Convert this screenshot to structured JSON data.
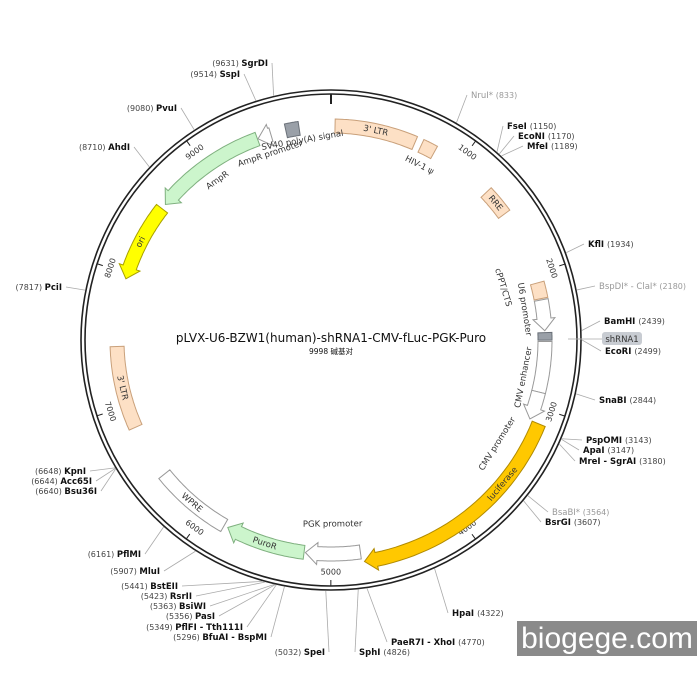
{
  "plasmid": {
    "name": "pLVX-U6-BZW1(human)-shRNA1-CMV-fLuc-PGK-Puro",
    "length_label": "9998 碱基对",
    "length_bp": 9998
  },
  "ticks": [
    "1000",
    "2000",
    "3000",
    "4000",
    "5000",
    "6000",
    "7000",
    "8000",
    "9000"
  ],
  "features": [
    {
      "label": "3' LTR",
      "start": 30,
      "end": 640,
      "dir": "none",
      "color": "#fde0c5"
    },
    {
      "label": "HIV-1 ψ",
      "start": 690,
      "end": 800,
      "dir": "none",
      "color": "#fde0c5"
    },
    {
      "label": "RRE",
      "start": 1290,
      "end": 1500,
      "dir": "none",
      "color": "#fde0c5"
    },
    {
      "label": "cPPT/CTS",
      "start": 2070,
      "end": 2190,
      "dir": "none",
      "color": "#fde0c5"
    },
    {
      "label": "U6 promoter",
      "start": 2200,
      "end": 2430,
      "dir": "cw",
      "color": "#ffffff"
    },
    {
      "label": "shRNA1",
      "start": 2445,
      "end": 2500,
      "dir": "none",
      "color": "#9aa0a8"
    },
    {
      "label": "CMV enhancer",
      "start": 2510,
      "end": 2890,
      "dir": "none",
      "color": "#ffffff"
    },
    {
      "label": "CMV promoter",
      "start": 2890,
      "end": 3100,
      "dir": "cw",
      "color": "#ffffff"
    },
    {
      "label": "luciferase",
      "start": 3110,
      "end": 4760,
      "dir": "cw",
      "color": "#ffc800"
    },
    {
      "label": "PGK promoter",
      "start": 4780,
      "end": 5190,
      "dir": "cw",
      "color": "#ffffff"
    },
    {
      "label": "PuroR",
      "start": 5200,
      "end": 5800,
      "dir": "cw",
      "color": "#ccf5cc"
    },
    {
      "label": "WPRE",
      "start": 5830,
      "end": 6420,
      "dir": "none",
      "color": "#ffffff"
    },
    {
      "label": "3' LTR",
      "start": 6830,
      "end": 7450,
      "dir": "none",
      "color": "#fde0c5"
    },
    {
      "label": "ori",
      "start": 7960,
      "end": 8550,
      "dir": "ccw",
      "color": "#ffff00"
    },
    {
      "label": "AmpR",
      "start": 8590,
      "end": 9440,
      "dir": "ccw",
      "color": "#ccf5cc"
    },
    {
      "label": "AmpR promoter",
      "start": 9445,
      "end": 9545,
      "dir": "ccw",
      "color": "#ffffff"
    },
    {
      "label": "SV40 poly(A) signal",
      "start": 9660,
      "end": 9760,
      "dir": "none",
      "color": "#9aa0a8"
    }
  ],
  "sites": [
    {
      "name": "SgrDI",
      "pos": "(9631)",
      "bp": 9631,
      "gray": false
    },
    {
      "name": "SspI",
      "pos": "(9514)",
      "bp": 9514,
      "gray": false
    },
    {
      "name": "PvuI",
      "pos": "(9080)",
      "bp": 9080,
      "gray": false
    },
    {
      "name": "AhdI",
      "pos": "(8710)",
      "bp": 8710,
      "gray": false
    },
    {
      "name": "PciI",
      "pos": "(7817)",
      "bp": 7817,
      "gray": false
    },
    {
      "name": "KpnI",
      "pos": "(6648)",
      "bp": 6648,
      "gray": false
    },
    {
      "name": "Acc65I",
      "pos": "(6644)",
      "bp": 6644,
      "gray": false
    },
    {
      "name": "Bsu36I",
      "pos": "(6640)",
      "bp": 6640,
      "gray": false
    },
    {
      "name": "PflMI",
      "pos": "(6161)",
      "bp": 6161,
      "gray": false
    },
    {
      "name": "MluI",
      "pos": "(5907)",
      "bp": 5907,
      "gray": false
    },
    {
      "name": "BstEII",
      "pos": "(5441)",
      "bp": 5441,
      "gray": false
    },
    {
      "name": "RsrII",
      "pos": "(5423)",
      "bp": 5423,
      "gray": false
    },
    {
      "name": "BsiWI",
      "pos": "(5363)",
      "bp": 5363,
      "gray": false
    },
    {
      "name": "PasI",
      "pos": "(5356)",
      "bp": 5356,
      "gray": false
    },
    {
      "name": "PflFI - Tth111I",
      "pos": "(5349)",
      "bp": 5349,
      "gray": false
    },
    {
      "name": "BfuAI - BspMI",
      "pos": "(5296)",
      "bp": 5296,
      "gray": false
    },
    {
      "name": "SpeI",
      "pos": "(5032)",
      "bp": 5032,
      "gray": false
    },
    {
      "name": "NruI*",
      "pos": "(833)",
      "bp": 833,
      "gray": true
    },
    {
      "name": "FseI",
      "pos": "(1150)",
      "bp": 1150,
      "gray": false
    },
    {
      "name": "EcoNI",
      "pos": "(1170)",
      "bp": 1170,
      "gray": false
    },
    {
      "name": "MfeI",
      "pos": "(1189)",
      "bp": 1189,
      "gray": false
    },
    {
      "name": "KflI",
      "pos": "(1934)",
      "bp": 1934,
      "gray": false
    },
    {
      "name": "BspDI* - ClaI*",
      "pos": "(2180)",
      "bp": 2180,
      "gray": true
    },
    {
      "name": "BamHI",
      "pos": "(2439)",
      "bp": 2439,
      "gray": false
    },
    {
      "name": "EcoRI",
      "pos": "(2499)",
      "bp": 2499,
      "gray": false
    },
    {
      "name": "SnaBI",
      "pos": "(2844)",
      "bp": 2844,
      "gray": false
    },
    {
      "name": "PspOMI",
      "pos": "(3143)",
      "bp": 3143,
      "gray": false
    },
    {
      "name": "ApaI",
      "pos": "(3147)",
      "bp": 3147,
      "gray": false
    },
    {
      "name": "MreI - SgrAI",
      "pos": "(3180)",
      "bp": 3180,
      "gray": false
    },
    {
      "name": "BsaBI*",
      "pos": "(3564)",
      "bp": 3564,
      "gray": true
    },
    {
      "name": "BsrGI",
      "pos": "(3607)",
      "bp": 3607,
      "gray": false
    },
    {
      "name": "HpaI",
      "pos": "(4322)",
      "bp": 4322,
      "gray": false
    },
    {
      "name": "PaeR7I - XhoI",
      "pos": "(4770)",
      "bp": 4770,
      "gray": false
    },
    {
      "name": "SphI",
      "pos": "(4826)",
      "bp": 4826,
      "gray": false
    }
  ],
  "shrna_badge": "shRNA1",
  "watermark": "biogege.com"
}
